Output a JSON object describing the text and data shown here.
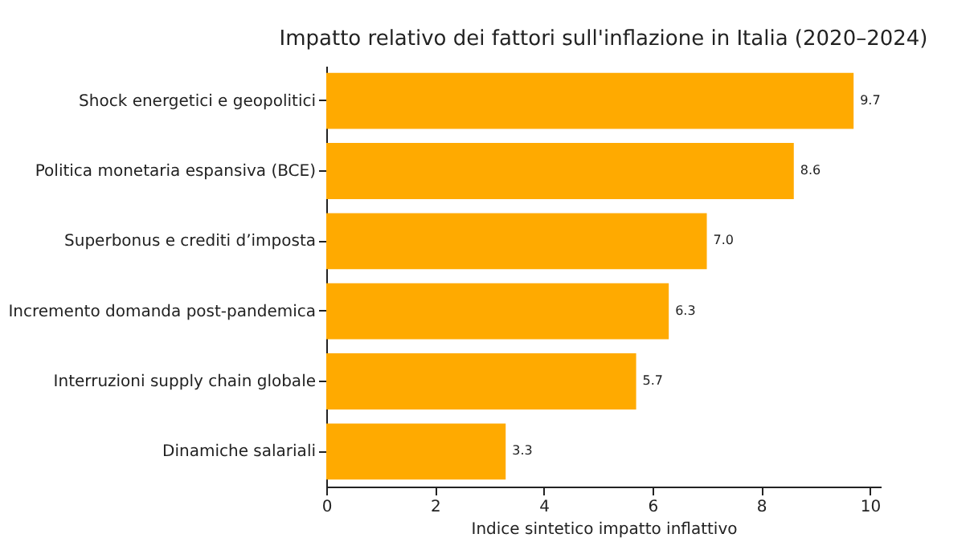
{
  "chart_data": {
    "type": "bar",
    "orientation": "horizontal",
    "title": "Impatto relativo dei fattori sull'inflazione in Italia (2020–2024)",
    "xlabel": "Indice sintetico impatto inflattivo",
    "categories": [
      "Shock energetici e geopolitici",
      "Politica monetaria espansiva (BCE)",
      "Superbonus e crediti d’imposta",
      "Incremento domanda post-pandemica",
      "Interruzioni supply chain globale",
      "Dinamiche salariali"
    ],
    "values": [
      9.7,
      8.6,
      7.0,
      6.3,
      5.7,
      3.3
    ],
    "value_labels": [
      "9.7",
      "8.6",
      "7.0",
      "6.3",
      "5.7",
      "3.3"
    ],
    "color": "#ffaa00",
    "xlim": [
      0,
      10.2
    ],
    "xticks": [
      0,
      2,
      4,
      6,
      8,
      10
    ],
    "grid": false
  }
}
